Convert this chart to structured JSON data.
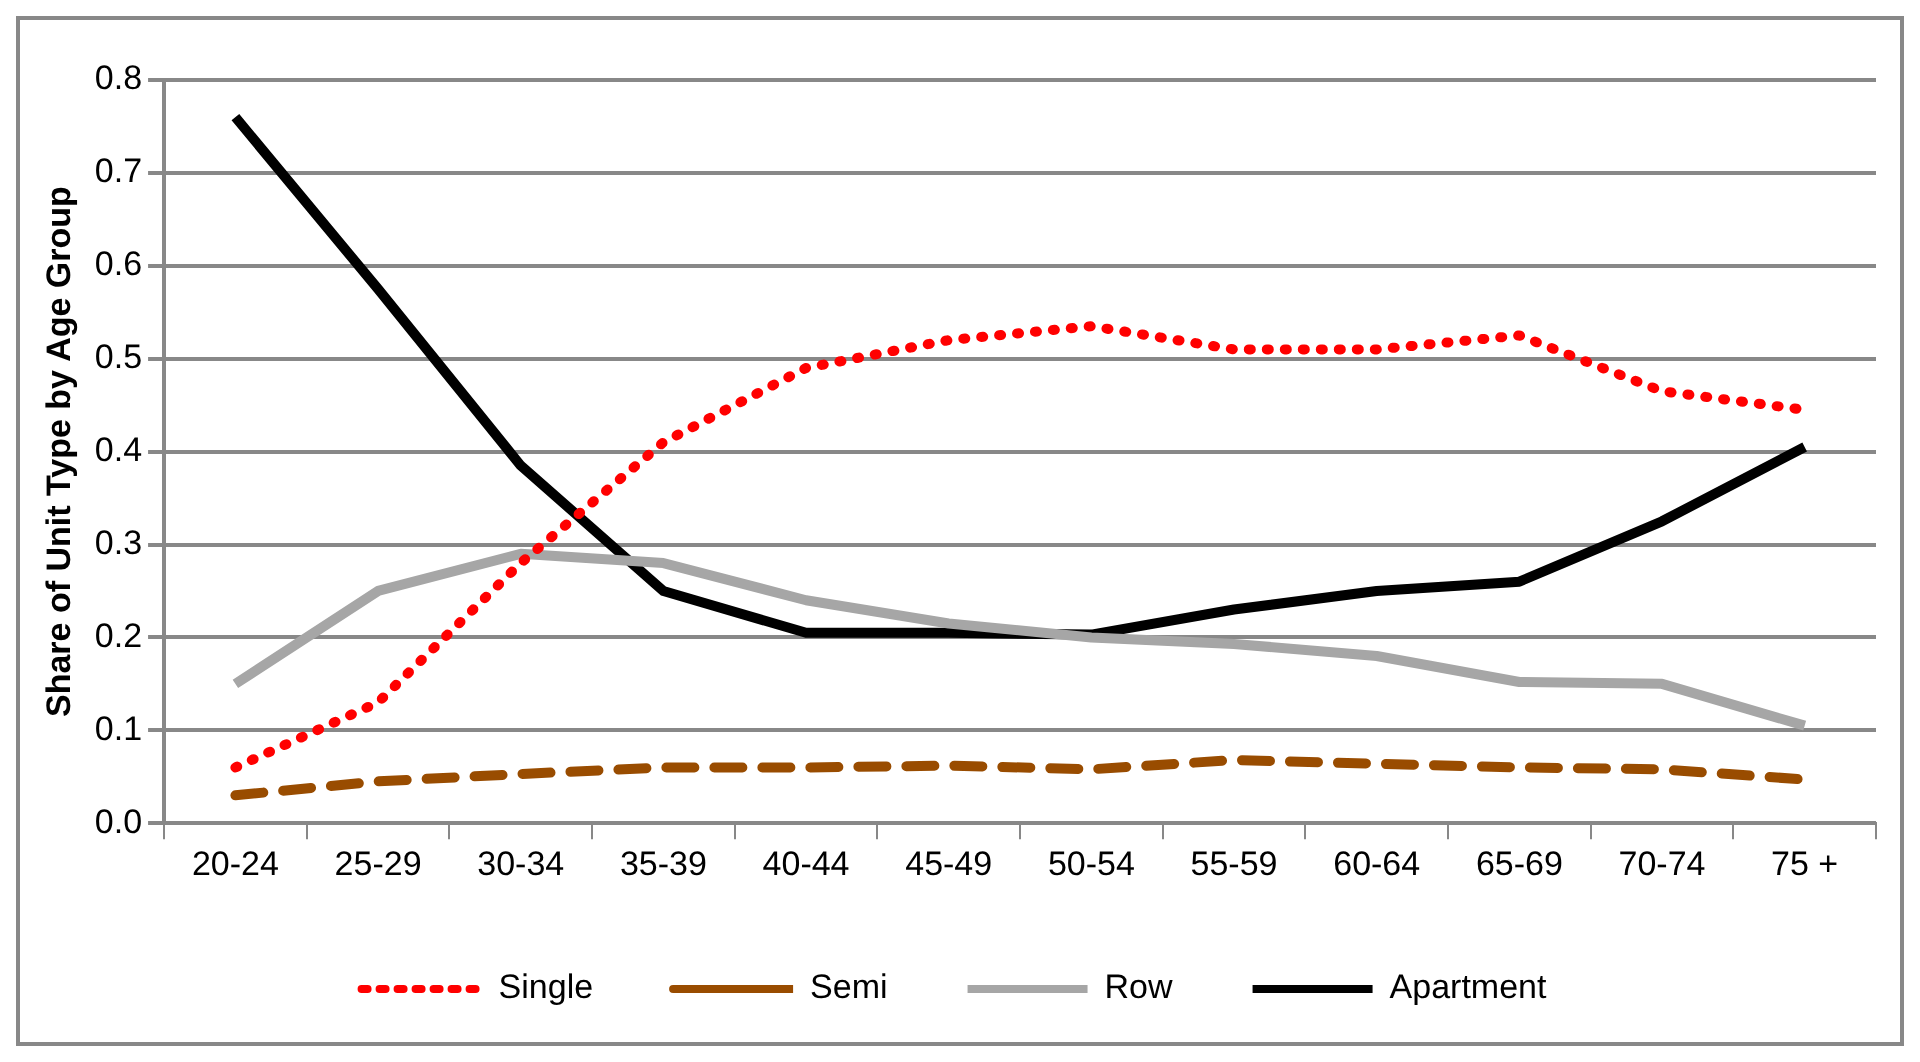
{
  "chart_data": {
    "type": "line",
    "ylabel": "Share of Unit Type by Age Group",
    "categories": [
      "20-24",
      "25-29",
      "30-34",
      "35-39",
      "40-44",
      "45-49",
      "50-54",
      "55-59",
      "60-64",
      "65-69",
      "70-74",
      "75 +"
    ],
    "series": [
      {
        "name": "Single",
        "color": "#ff0000",
        "line_style": "dotted",
        "values": [
          0.06,
          0.13,
          0.28,
          0.41,
          0.49,
          0.52,
          0.535,
          0.51,
          0.51,
          0.525,
          0.465,
          0.445
        ]
      },
      {
        "name": "Semi",
        "color": "#994c00",
        "line_style": "dashed",
        "values": [
          0.03,
          0.045,
          0.053,
          0.06,
          0.06,
          0.062,
          0.058,
          0.068,
          0.064,
          0.06,
          0.058,
          0.047
        ]
      },
      {
        "name": "Row",
        "color": "#a6a6a6",
        "line_style": "solid",
        "values": [
          0.15,
          0.25,
          0.29,
          0.28,
          0.24,
          0.215,
          0.2,
          0.193,
          0.18,
          0.152,
          0.15,
          0.105
        ]
      },
      {
        "name": "Apartment",
        "color": "#000000",
        "line_style": "solid",
        "values": [
          0.76,
          0.575,
          0.385,
          0.25,
          0.205,
          0.205,
          0.203,
          0.23,
          0.25,
          0.26,
          0.325,
          0.405
        ]
      }
    ],
    "ylim": [
      0,
      0.8
    ],
    "yticks": [
      {
        "value": 0,
        "label": "0.0"
      },
      {
        "value": 0.1,
        "label": "0.1"
      },
      {
        "value": 0.2,
        "label": "0.2"
      },
      {
        "value": 0.3,
        "label": "0.3"
      },
      {
        "value": 0.4,
        "label": "0.4"
      },
      {
        "value": 0.5,
        "label": "0.5"
      },
      {
        "value": 0.6,
        "label": "0.6"
      },
      {
        "value": 0.7,
        "label": "0.7"
      },
      {
        "value": 0.8,
        "label": "0.8"
      }
    ],
    "grid": "y",
    "legend": "bottom",
    "marker": "none"
  }
}
